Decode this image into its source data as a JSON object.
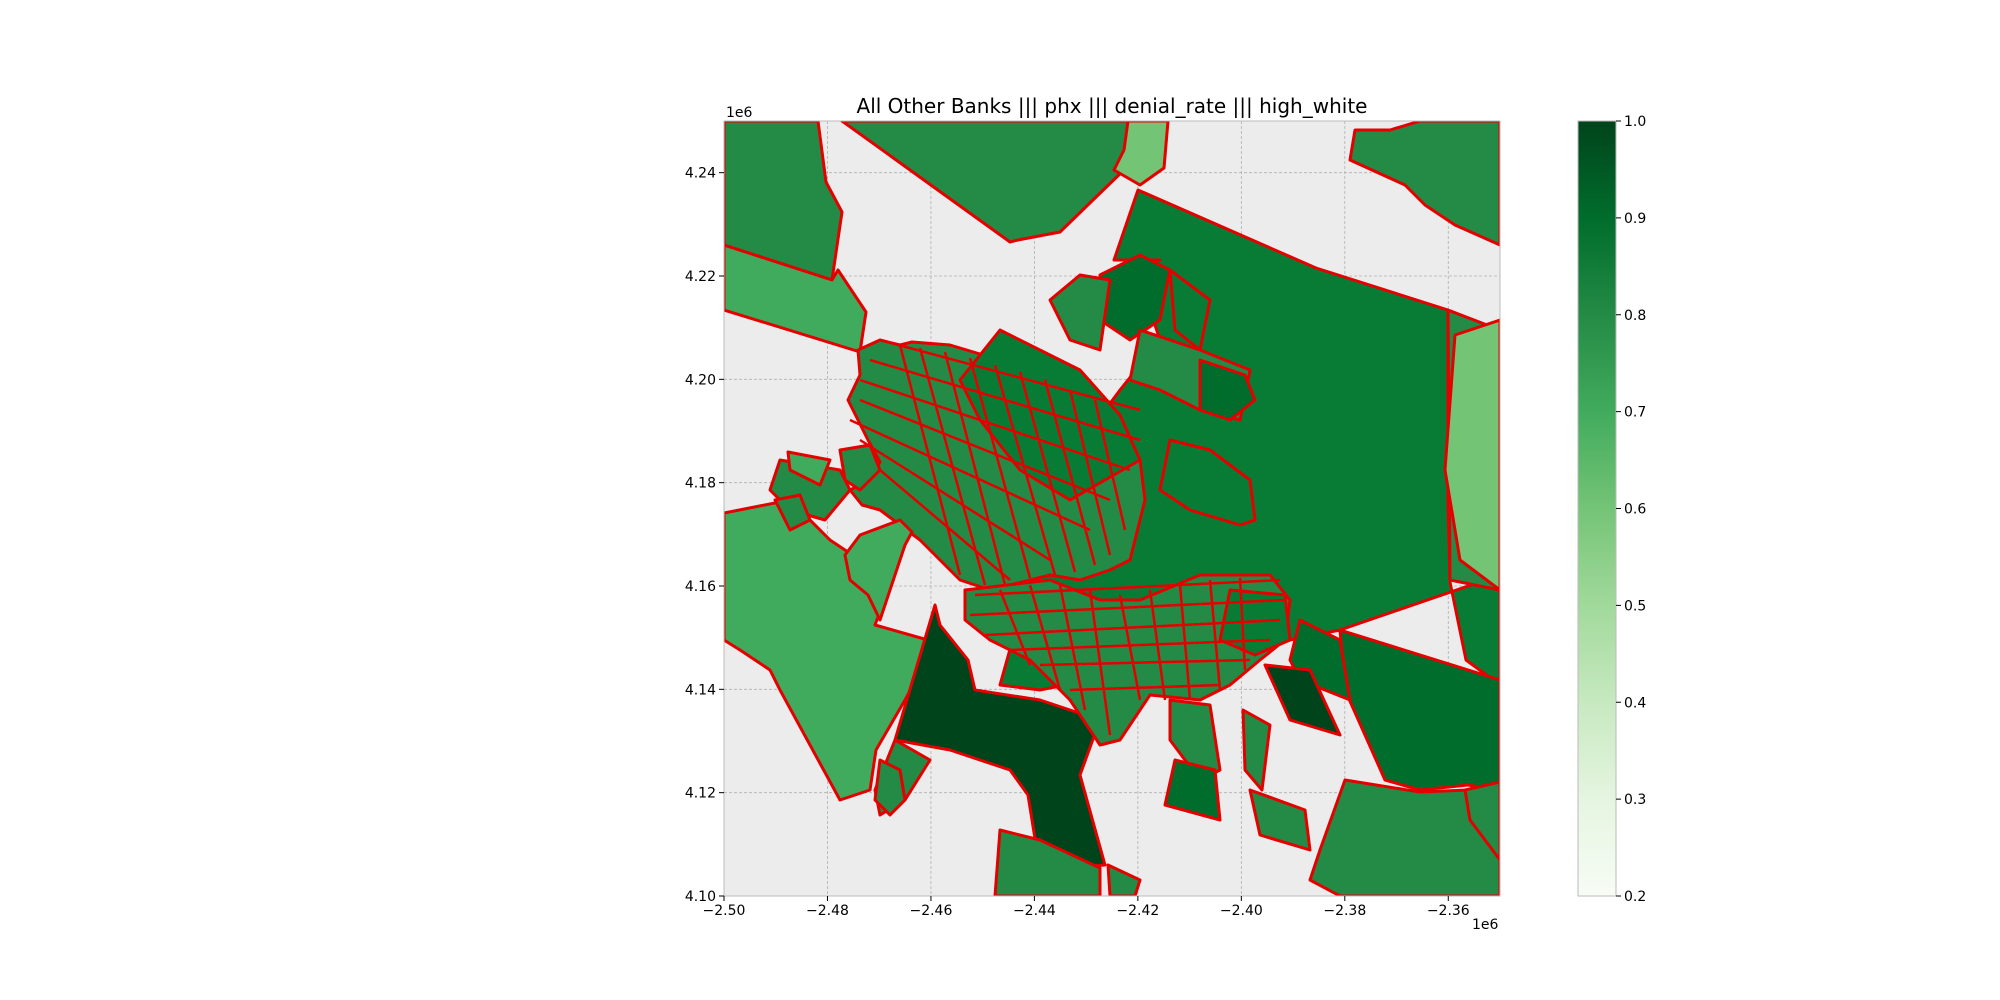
{
  "chart_data": {
    "type": "choropleth-map",
    "title": "All Other Banks ||| phx ||| denial_rate ||| high_white",
    "x_ticks": [
      "−2.50",
      "−2.48",
      "−2.46",
      "−2.44",
      "−2.42",
      "−2.40",
      "−2.38",
      "−2.36"
    ],
    "y_ticks": [
      "4.10",
      "4.12",
      "4.14",
      "4.16",
      "4.18",
      "4.20",
      "4.22",
      "4.24"
    ],
    "x_offset_label": "1e6",
    "y_offset_label": "1e6",
    "xlim": [
      -2.5,
      -2.35
    ],
    "ylim": [
      4.1,
      4.25
    ],
    "grid": true,
    "colormap": "Greens",
    "colorbar": {
      "range": [
        0.2,
        1.0
      ],
      "ticks": [
        "0.2",
        "0.3",
        "0.4",
        "0.5",
        "0.6",
        "0.7",
        "0.8",
        "0.9",
        "1.0"
      ]
    },
    "edge_color": "#e50000",
    "background_color": "#ececec"
  }
}
